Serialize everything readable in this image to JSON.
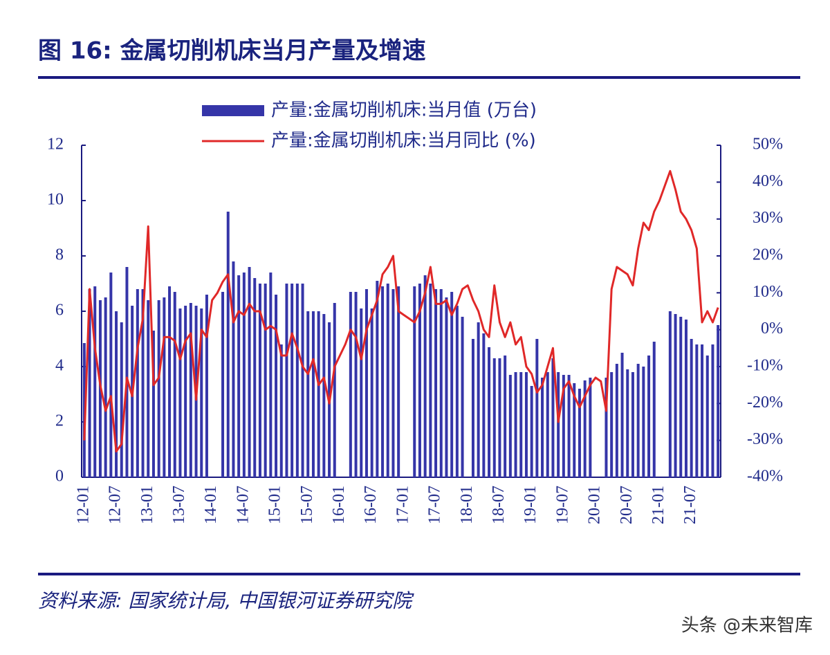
{
  "chart_data": {
    "type": "bar_line",
    "title": "图 16:  金属切削机床当月产量及增速",
    "source": "资料来源:  国家统计局,  中国银河证券研究院",
    "watermark": "头条 @未来智库",
    "categories": [
      "12-01",
      null,
      null,
      null,
      null,
      null,
      "12-07",
      null,
      null,
      null,
      null,
      null,
      "13-01",
      null,
      null,
      null,
      null,
      null,
      "13-07",
      null,
      null,
      null,
      null,
      null,
      "14-01",
      null,
      null,
      null,
      null,
      null,
      "14-07",
      null,
      null,
      null,
      null,
      null,
      "15-01",
      null,
      null,
      null,
      null,
      null,
      "15-07",
      null,
      null,
      null,
      null,
      null,
      "16-01",
      null,
      null,
      null,
      null,
      null,
      "16-07",
      null,
      null,
      null,
      null,
      null,
      "17-01",
      null,
      null,
      null,
      null,
      null,
      "17-07",
      null,
      null,
      null,
      null,
      null,
      "18-01",
      null,
      null,
      null,
      null,
      null,
      "18-07",
      null,
      null,
      null,
      null,
      null,
      "19-01",
      null,
      null,
      null,
      null,
      null,
      "19-07",
      null,
      null,
      null,
      null,
      null,
      "20-01",
      null,
      null,
      null,
      null,
      null,
      "20-07",
      null,
      null,
      null,
      null,
      null,
      "21-01",
      null,
      null,
      null,
      null,
      null,
      "21-07",
      null,
      null,
      null,
      null,
      null
    ],
    "series": [
      {
        "name": "产量:金属切削机床:当月值 (万台)",
        "color": "#3535a8",
        "axis": "y",
        "values": [
          4.85,
          6.8,
          6.9,
          6.4,
          6.5,
          7.4,
          6.0,
          5.6,
          7.6,
          6.2,
          6.8,
          6.8,
          6.4,
          5.3,
          6.4,
          6.5,
          6.9,
          6.7,
          6.1,
          6.2,
          6.3,
          6.2,
          6.1,
          6.6,
          null,
          null,
          6.7,
          9.6,
          7.8,
          7.3,
          7.4,
          7.6,
          7.2,
          7.0,
          7.0,
          7.4,
          6.6,
          4.8,
          7.0,
          7.0,
          7.0,
          7.0,
          6.0,
          6.0,
          6.0,
          5.9,
          5.6,
          6.3,
          null,
          null,
          6.7,
          6.7,
          6.1,
          6.8,
          6.1,
          7.1,
          6.9,
          7.0,
          6.8,
          6.9,
          null,
          null,
          6.9,
          7.0,
          7.3,
          7.0,
          6.8,
          6.8,
          6.5,
          6.7,
          6.2,
          5.8,
          null,
          5.0,
          5.6,
          5.2,
          4.7,
          4.3,
          4.3,
          4.4,
          3.7,
          3.8,
          3.8,
          3.8,
          3.3,
          5.0,
          3.6,
          3.8,
          4.3,
          3.8,
          3.7,
          3.7,
          3.4,
          3.2,
          3.5,
          3.6,
          null,
          null,
          3.6,
          3.8,
          4.1,
          4.5,
          3.9,
          3.8,
          4.1,
          4.0,
          4.4,
          4.9,
          null,
          null,
          6.0,
          5.9,
          5.8,
          5.7,
          5.0,
          4.8,
          4.8,
          4.4,
          4.8,
          5.5
        ]
      },
      {
        "name": "产量:金属切削机床:当月同比 (%)",
        "color": "#e02828",
        "axis": "y2",
        "values": [
          -30,
          11,
          -5,
          -15,
          -22,
          -18,
          -33,
          -31,
          -13,
          -18,
          -5,
          3,
          28,
          -15,
          -13,
          -2,
          -2,
          -3,
          -8,
          -3,
          -1,
          -19,
          0,
          -2,
          8,
          10,
          13,
          15,
          2,
          5,
          4,
          7,
          5,
          5,
          0,
          1,
          0,
          -7,
          -7,
          -1,
          -5,
          -10,
          -12,
          -8,
          -15,
          -13,
          -20,
          -10,
          -7,
          -4,
          0,
          -2,
          -8,
          0,
          4,
          8,
          15,
          17,
          20,
          5,
          4,
          3,
          2,
          5,
          10,
          17,
          7,
          7,
          8,
          4,
          7,
          11,
          12,
          8,
          5,
          0,
          -2,
          12,
          2,
          -2,
          2,
          -4,
          -2,
          -10,
          -12,
          -17,
          -15,
          -10,
          -5,
          -25,
          -16,
          -14,
          -18,
          -21,
          -18,
          -15,
          -13,
          -14,
          -22,
          11,
          17,
          16,
          15,
          12,
          22,
          29,
          27,
          32,
          35,
          39,
          43,
          38,
          32,
          30,
          27,
          22,
          2,
          5,
          2,
          6
        ]
      }
    ],
    "ylim": [
      0,
      12
    ],
    "yticks": [
      0,
      2,
      4,
      6,
      8,
      10,
      12
    ],
    "y2lim": [
      -40,
      50
    ],
    "y2ticks": [
      {
        "value": -40,
        "label": "-40%"
      },
      {
        "value": -30,
        "label": "-30%"
      },
      {
        "value": -20,
        "label": "-20%"
      },
      {
        "value": -10,
        "label": "-10%"
      },
      {
        "value": 0,
        "label": "0%"
      },
      {
        "value": 10,
        "label": "10%"
      },
      {
        "value": 20,
        "label": "20%"
      },
      {
        "value": 30,
        "label": "30%"
      },
      {
        "value": 40,
        "label": "40%"
      },
      {
        "value": 50,
        "label": "50%"
      }
    ],
    "legend": "top"
  }
}
